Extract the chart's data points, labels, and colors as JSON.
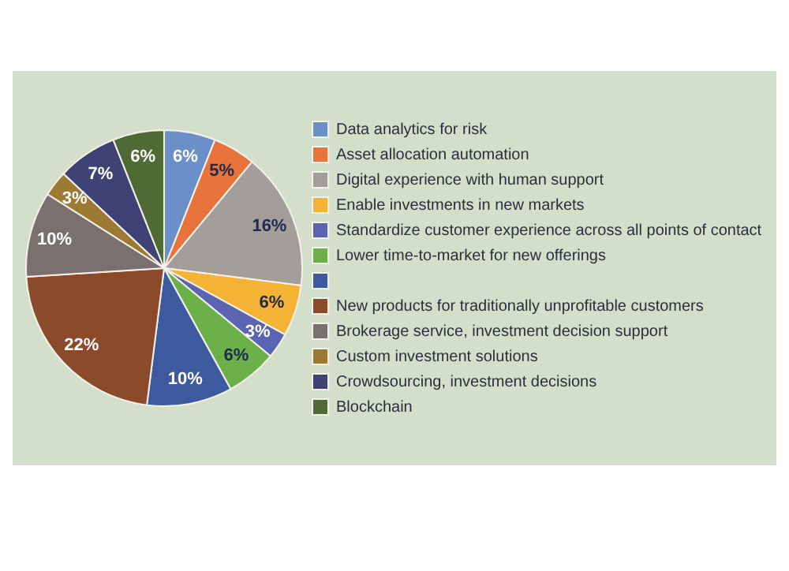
{
  "chart_data": {
    "type": "pie",
    "categories": [
      "Data analytics for risk",
      "Asset allocation automation",
      "Digital experience with human support",
      "Enable investments in new markets",
      "Standardize customer experience across all points of contact",
      "Lower time-to-market for new offerings",
      null,
      "New products for traditionally unprofitable customers",
      "Brokerage service, investment decision support",
      "Custom investment solutions",
      "Crowdsourcing, investment decisions",
      "Blockchain"
    ],
    "values": [
      6,
      5,
      16,
      6,
      3,
      6,
      10,
      22,
      10,
      3,
      7,
      6
    ],
    "value_labels": [
      "6%",
      "5%",
      "16%",
      "6%",
      "3%",
      "6%",
      "10%",
      "22%",
      "10%",
      "3%",
      "7%",
      "6%"
    ],
    "colors": [
      "#6b90c9",
      "#e8743b",
      "#a39e9a",
      "#f5b335",
      "#5a64b0",
      "#6bb048",
      "#3d5a9e",
      "#8b4a2a",
      "#7a716e",
      "#9c7a34",
      "#3f4275",
      "#4f6a35"
    ],
    "legend": "right"
  }
}
